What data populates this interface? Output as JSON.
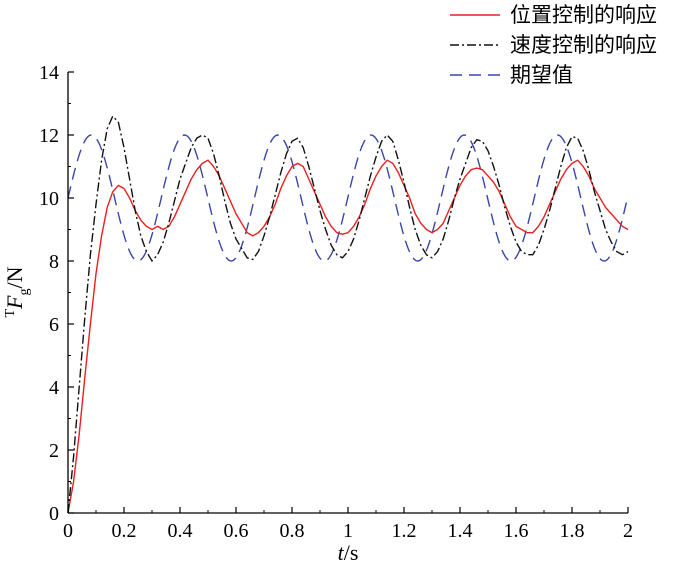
{
  "chart_data": {
    "type": "line",
    "xlabel": "t/s",
    "ylabel": "TFg/N",
    "xlim": [
      0,
      2
    ],
    "ylim": [
      0,
      14
    ],
    "x_ticks": [
      "0",
      "0.2",
      "0.4",
      "0.6",
      "0.8",
      "1",
      "1.2",
      "1.4",
      "1.6",
      "1.8",
      "2"
    ],
    "y_ticks": [
      "0",
      "2",
      "4",
      "6",
      "8",
      "10",
      "12",
      "14"
    ],
    "grid": false,
    "legend_position": "top-right, outside plot area",
    "series": [
      {
        "name": "位置控制的响应",
        "color": "#e8201f",
        "dash": "solid",
        "points": [
          [
            0,
            0
          ],
          [
            0.02,
            1.0
          ],
          [
            0.04,
            2.5
          ],
          [
            0.06,
            4.3
          ],
          [
            0.08,
            6.0
          ],
          [
            0.1,
            7.6
          ],
          [
            0.12,
            8.8
          ],
          [
            0.14,
            9.7
          ],
          [
            0.16,
            10.2
          ],
          [
            0.18,
            10.4
          ],
          [
            0.2,
            10.3
          ],
          [
            0.22,
            10.0
          ],
          [
            0.24,
            9.6
          ],
          [
            0.26,
            9.3
          ],
          [
            0.28,
            9.1
          ],
          [
            0.3,
            9.0
          ],
          [
            0.32,
            9.1
          ],
          [
            0.34,
            9.0
          ],
          [
            0.36,
            9.1
          ],
          [
            0.38,
            9.4
          ],
          [
            0.4,
            9.8
          ],
          [
            0.42,
            10.2
          ],
          [
            0.44,
            10.6
          ],
          [
            0.46,
            10.9
          ],
          [
            0.48,
            11.1
          ],
          [
            0.5,
            11.2
          ],
          [
            0.52,
            11.0
          ],
          [
            0.54,
            10.7
          ],
          [
            0.56,
            10.3
          ],
          [
            0.58,
            9.9
          ],
          [
            0.6,
            9.5
          ],
          [
            0.62,
            9.2
          ],
          [
            0.64,
            8.9
          ],
          [
            0.66,
            8.8
          ],
          [
            0.68,
            8.9
          ],
          [
            0.7,
            9.1
          ],
          [
            0.72,
            9.4
          ],
          [
            0.74,
            9.8
          ],
          [
            0.76,
            10.3
          ],
          [
            0.78,
            10.7
          ],
          [
            0.8,
            11.0
          ],
          [
            0.82,
            11.1
          ],
          [
            0.84,
            11.0
          ],
          [
            0.86,
            10.6
          ],
          [
            0.88,
            10.2
          ],
          [
            0.9,
            9.8
          ],
          [
            0.92,
            9.4
          ],
          [
            0.94,
            9.1
          ],
          [
            0.96,
            8.9
          ],
          [
            0.98,
            8.85
          ],
          [
            1.0,
            8.9
          ],
          [
            1.02,
            9.1
          ],
          [
            1.04,
            9.4
          ],
          [
            1.06,
            9.8
          ],
          [
            1.08,
            10.3
          ],
          [
            1.1,
            10.7
          ],
          [
            1.12,
            11.0
          ],
          [
            1.14,
            11.2
          ],
          [
            1.16,
            11.1
          ],
          [
            1.18,
            10.8
          ],
          [
            1.2,
            10.4
          ],
          [
            1.22,
            10.0
          ],
          [
            1.24,
            9.5
          ],
          [
            1.26,
            9.2
          ],
          [
            1.28,
            9.0
          ],
          [
            1.3,
            8.9
          ],
          [
            1.32,
            9.0
          ],
          [
            1.34,
            9.2
          ],
          [
            1.36,
            9.6
          ],
          [
            1.38,
            10.0
          ],
          [
            1.4,
            10.4
          ],
          [
            1.42,
            10.7
          ],
          [
            1.44,
            10.9
          ],
          [
            1.46,
            10.95
          ],
          [
            1.48,
            10.9
          ],
          [
            1.5,
            10.7
          ],
          [
            1.52,
            10.5
          ],
          [
            1.54,
            10.2
          ],
          [
            1.56,
            9.8
          ],
          [
            1.58,
            9.4
          ],
          [
            1.6,
            9.1
          ],
          [
            1.62,
            9.0
          ],
          [
            1.64,
            8.9
          ],
          [
            1.66,
            8.9
          ],
          [
            1.68,
            9.1
          ],
          [
            1.7,
            9.4
          ],
          [
            1.72,
            9.8
          ],
          [
            1.74,
            10.2
          ],
          [
            1.76,
            10.6
          ],
          [
            1.78,
            10.9
          ],
          [
            1.8,
            11.1
          ],
          [
            1.82,
            11.2
          ],
          [
            1.84,
            11.0
          ],
          [
            1.86,
            10.7
          ],
          [
            1.88,
            10.3
          ],
          [
            1.9,
            10.0
          ],
          [
            1.92,
            9.7
          ],
          [
            1.94,
            9.5
          ],
          [
            1.96,
            9.3
          ],
          [
            1.98,
            9.1
          ],
          [
            2.0,
            9.0
          ]
        ]
      },
      {
        "name": "速度控制的响应",
        "color": "#111111",
        "dash": "dashdot",
        "points": [
          [
            0,
            0
          ],
          [
            0.02,
            1.8
          ],
          [
            0.04,
            4.0
          ],
          [
            0.06,
            6.2
          ],
          [
            0.08,
            8.2
          ],
          [
            0.1,
            9.8
          ],
          [
            0.12,
            11.2
          ],
          [
            0.14,
            12.2
          ],
          [
            0.16,
            12.6
          ],
          [
            0.18,
            12.4
          ],
          [
            0.2,
            11.6
          ],
          [
            0.22,
            10.6
          ],
          [
            0.24,
            9.6
          ],
          [
            0.26,
            8.8
          ],
          [
            0.28,
            8.3
          ],
          [
            0.3,
            8.0
          ],
          [
            0.32,
            8.2
          ],
          [
            0.34,
            8.6
          ],
          [
            0.36,
            9.2
          ],
          [
            0.38,
            9.9
          ],
          [
            0.4,
            10.6
          ],
          [
            0.42,
            11.1
          ],
          [
            0.44,
            11.6
          ],
          [
            0.46,
            11.9
          ],
          [
            0.48,
            12.0
          ],
          [
            0.5,
            11.9
          ],
          [
            0.52,
            11.4
          ],
          [
            0.54,
            10.7
          ],
          [
            0.56,
            9.9
          ],
          [
            0.58,
            9.2
          ],
          [
            0.6,
            8.7
          ],
          [
            0.62,
            8.4
          ],
          [
            0.64,
            8.1
          ],
          [
            0.66,
            8.05
          ],
          [
            0.68,
            8.3
          ],
          [
            0.7,
            8.8
          ],
          [
            0.72,
            9.4
          ],
          [
            0.74,
            10.1
          ],
          [
            0.76,
            10.8
          ],
          [
            0.78,
            11.4
          ],
          [
            0.8,
            11.8
          ],
          [
            0.82,
            11.9
          ],
          [
            0.84,
            11.6
          ],
          [
            0.86,
            11.0
          ],
          [
            0.88,
            10.3
          ],
          [
            0.9,
            9.6
          ],
          [
            0.92,
            9.0
          ],
          [
            0.94,
            8.5
          ],
          [
            0.96,
            8.2
          ],
          [
            0.98,
            8.1
          ],
          [
            1.0,
            8.3
          ],
          [
            1.02,
            8.7
          ],
          [
            1.04,
            9.3
          ],
          [
            1.06,
            10.0
          ],
          [
            1.08,
            10.7
          ],
          [
            1.1,
            11.3
          ],
          [
            1.12,
            11.8
          ],
          [
            1.14,
            12.0
          ],
          [
            1.16,
            11.8
          ],
          [
            1.18,
            11.2
          ],
          [
            1.2,
            10.5
          ],
          [
            1.22,
            9.7
          ],
          [
            1.24,
            9.0
          ],
          [
            1.26,
            8.5
          ],
          [
            1.28,
            8.2
          ],
          [
            1.3,
            8.1
          ],
          [
            1.32,
            8.3
          ],
          [
            1.34,
            8.7
          ],
          [
            1.36,
            9.3
          ],
          [
            1.38,
            10.0
          ],
          [
            1.4,
            10.6
          ],
          [
            1.42,
            11.1
          ],
          [
            1.44,
            11.6
          ],
          [
            1.46,
            11.85
          ],
          [
            1.48,
            11.8
          ],
          [
            1.5,
            11.5
          ],
          [
            1.52,
            11.0
          ],
          [
            1.54,
            10.4
          ],
          [
            1.56,
            9.7
          ],
          [
            1.58,
            9.1
          ],
          [
            1.6,
            8.6
          ],
          [
            1.62,
            8.3
          ],
          [
            1.64,
            8.2
          ],
          [
            1.66,
            8.2
          ],
          [
            1.68,
            8.5
          ],
          [
            1.7,
            9.0
          ],
          [
            1.72,
            9.6
          ],
          [
            1.74,
            10.3
          ],
          [
            1.76,
            11.0
          ],
          [
            1.78,
            11.6
          ],
          [
            1.8,
            11.95
          ],
          [
            1.82,
            11.9
          ],
          [
            1.84,
            11.5
          ],
          [
            1.86,
            10.9
          ],
          [
            1.88,
            10.2
          ],
          [
            1.9,
            9.6
          ],
          [
            1.92,
            9.0
          ],
          [
            1.94,
            8.6
          ],
          [
            1.96,
            8.3
          ],
          [
            1.98,
            8.2
          ],
          [
            2.0,
            8.3
          ]
        ]
      },
      {
        "name": "期望值",
        "color": "#3a46a8",
        "dash": "dashed",
        "function": "10 + 2*sin(2*pi*t/0.333)",
        "x_start": 0,
        "x_end": 2,
        "samples": 400
      }
    ]
  }
}
